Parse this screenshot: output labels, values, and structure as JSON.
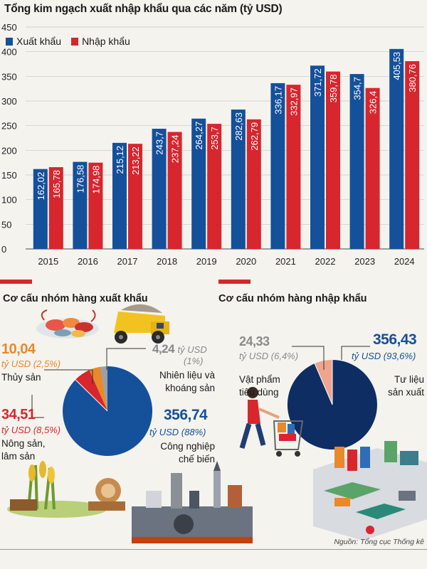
{
  "title": "Tổng kim ngạch xuất nhập khẩu qua các năm (tỷ USD)",
  "legend": {
    "export_label": "Xuất khẩu",
    "import_label": "Nhập khẩu"
  },
  "colors": {
    "export": "#15509a",
    "import": "#d7262e",
    "accent": "#d7262e",
    "dark_blue": "#0d2d63",
    "light_blue": "#2f6db4",
    "salmon": "#eea48d",
    "orange": "#e8892a"
  },
  "chart_data": [
    {
      "type": "bar",
      "title": "Tổng kim ngạch xuất nhập khẩu qua các năm (tỷ USD)",
      "categories": [
        "2015",
        "2016",
        "2017",
        "2018",
        "2019",
        "2020",
        "2021",
        "2022",
        "2023",
        "2024"
      ],
      "series": [
        {
          "name": "Xuất khẩu",
          "values": [
            162.02,
            176.58,
            215.12,
            243.7,
            264.27,
            282.63,
            336.17,
            371.72,
            354.7,
            405.53
          ],
          "labels": [
            "162,02",
            "176,58",
            "215,12",
            "243,7",
            "264,27",
            "282,63",
            "336,17",
            "371,72",
            "354,7",
            "405,53"
          ]
        },
        {
          "name": "Nhập khẩu",
          "values": [
            165.78,
            174.98,
            213.22,
            237.24,
            253.7,
            262.79,
            332.97,
            359.78,
            326.4,
            380.76
          ],
          "labels": [
            "165,78",
            "174,98",
            "213,22",
            "237,24",
            "253,7",
            "262,79",
            "332,97",
            "359,78",
            "326,4",
            "380,76"
          ]
        }
      ],
      "ylim": [
        0,
        450
      ],
      "yticks": [
        "0",
        "50",
        "100",
        "150",
        "200",
        "250",
        "300",
        "350",
        "400",
        "450"
      ],
      "legend_position": "top-left",
      "grid": true
    },
    {
      "type": "pie",
      "title": "Cơ cấu nhóm hàng xuất khẩu",
      "slices": [
        {
          "name": "Công nghiệp chế biến",
          "value": 356.74,
          "percent": 88
        },
        {
          "name": "Nông sản, lâm sản",
          "value": 34.51,
          "percent": 8.5
        },
        {
          "name": "Thủy sản",
          "value": 10.04,
          "percent": 2.5
        },
        {
          "name": "Nhiên liệu và khoáng sản",
          "value": 4.24,
          "percent": 1
        }
      ]
    },
    {
      "type": "pie",
      "title": "Cơ cấu nhóm hàng nhập khẩu",
      "slices": [
        {
          "name": "Tư liệu sản xuất",
          "value": 356.43,
          "percent": 93.6
        },
        {
          "name": "Vật phẩm tiêu dùng",
          "value": 24.33,
          "percent": 6.4
        }
      ]
    }
  ],
  "export_section": {
    "title": "Cơ cấu nhóm hàng xuất khẩu",
    "thuy_san": {
      "value": "10,04",
      "unit": "tỷ USD (2,5%)",
      "label": "Thủy sản"
    },
    "nhien_lieu": {
      "value": "4,24",
      "unit": "tỷ USD",
      "pct": "(1%)",
      "label1": "Nhiên liệu và",
      "label2": "khoáng sản"
    },
    "nong_san": {
      "value": "34,51",
      "unit": "tỷ USD (8,5%)",
      "label1": "Nông sản,",
      "label2": "lâm sản"
    },
    "cong_nghiep": {
      "value": "356,74",
      "unit": "tỷ USD (88%)",
      "label1": "Công nghiệp",
      "label2": "chế biến"
    }
  },
  "import_section": {
    "title": "Cơ cấu nhóm hàng nhập khẩu",
    "tieu_dung": {
      "value": "24,33",
      "unit": "tỷ USD (6,4%)",
      "label1": "Vật phẩm",
      "label2": "tiêu dùng"
    },
    "tu_lieu": {
      "value": "356,43",
      "unit": "tỷ USD (93,6%)",
      "label1": "Tư liệu",
      "label2": "sản xuất"
    }
  },
  "source": "Nguồn: Tổng cục Thống kê",
  "icons": [
    "seafood-illustration",
    "mining-truck-illustration",
    "agriculture-illustration",
    "factory-illustration",
    "shopper-illustration",
    "industrial-machinery-illustration"
  ]
}
